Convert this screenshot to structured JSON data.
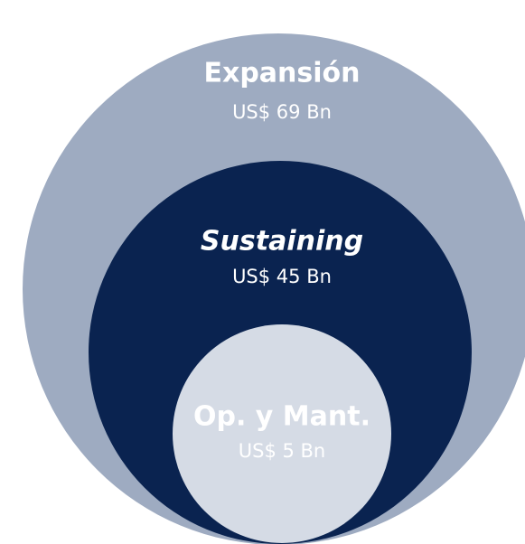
{
  "nodes": [
    {
      "label": "Expansión",
      "value": "US$ 69 Bn"
    },
    {
      "label": "Sustaining",
      "value": "US$ 45 Bn"
    },
    {
      "label": "Op. y Mant.",
      "value": "US$ 5 Bn"
    }
  ]
}
